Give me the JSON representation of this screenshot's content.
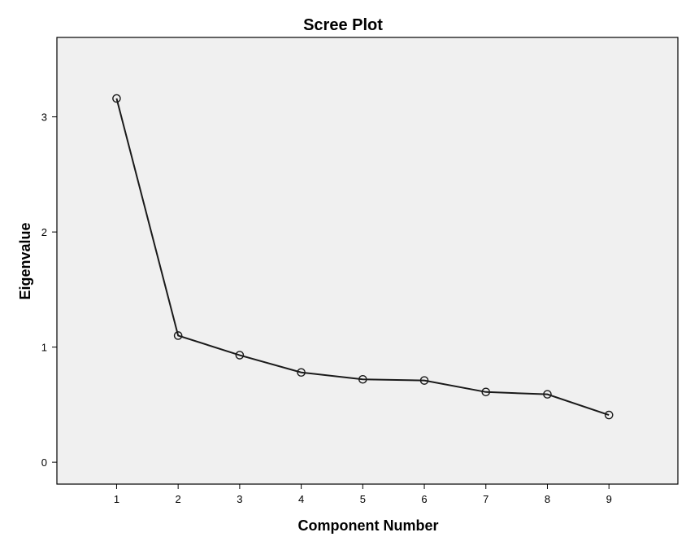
{
  "colors": {
    "plot_background": "#f0f0f0",
    "line": "#1a1a1a",
    "frame": "#000000"
  },
  "chart_data": {
    "type": "line",
    "title": "Scree Plot",
    "xlabel": "Component Number",
    "ylabel": "Eigenvalue",
    "x": [
      1,
      2,
      3,
      4,
      5,
      6,
      7,
      8,
      9
    ],
    "x_tick_labels": [
      "1",
      "2",
      "3",
      "4",
      "5",
      "6",
      "7",
      "8",
      "9"
    ],
    "y_ticks": [
      0,
      1,
      2,
      3
    ],
    "y_tick_labels": [
      "0",
      "1",
      "2",
      "3"
    ],
    "xlim": [
      0.03,
      10.12
    ],
    "ylim": [
      -0.19,
      3.69
    ],
    "series": [
      {
        "values": [
          3.16,
          1.1,
          0.93,
          0.78,
          0.72,
          0.71,
          0.61,
          0.59,
          0.41
        ],
        "marker": "open-circle"
      }
    ],
    "grid": false,
    "legend": "none"
  }
}
